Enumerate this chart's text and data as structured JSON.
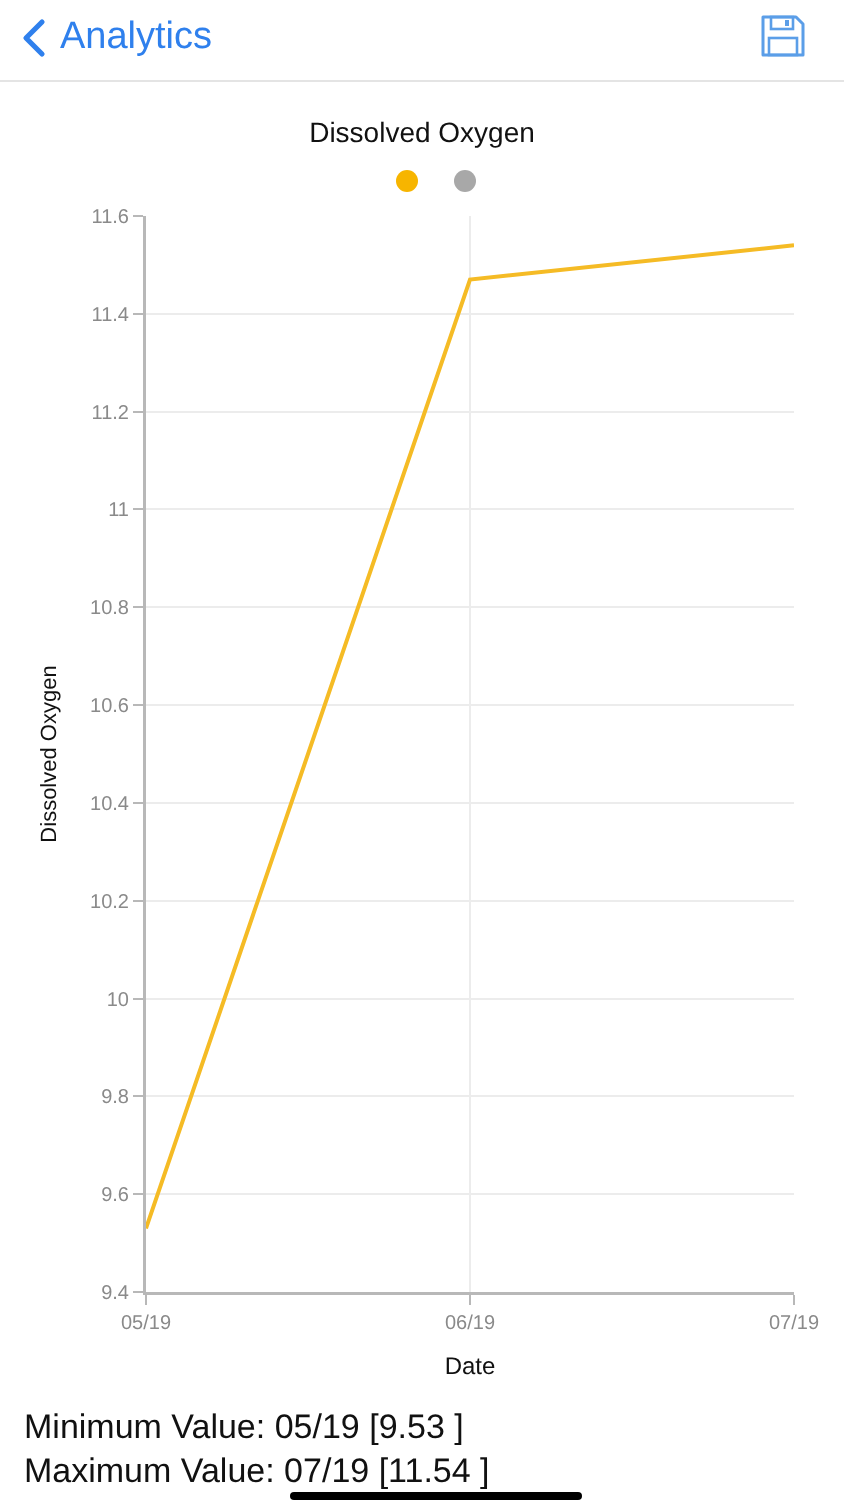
{
  "chart_data": {
    "type": "line",
    "title": "Dissolved Oxygen",
    "xlabel": "Date",
    "ylabel": "Dissolved Oxygen",
    "categories": [
      "05/19",
      "06/19",
      "07/19"
    ],
    "series": [
      {
        "color": "#f5bb25",
        "values": [
          9.53,
          11.47,
          11.54
        ]
      }
    ],
    "ylim": [
      9.4,
      11.6
    ],
    "yticks": [
      9.4,
      9.6,
      9.8,
      10,
      10.2,
      10.4,
      10.6,
      10.8,
      11,
      11.2,
      11.4,
      11.6
    ],
    "grid": true,
    "annotations": [
      "Analytics",
      "Minimum Value: 05/19 [9.53 ]",
      "Maximum Value: 07/19 [11.54 ]"
    ]
  }
}
